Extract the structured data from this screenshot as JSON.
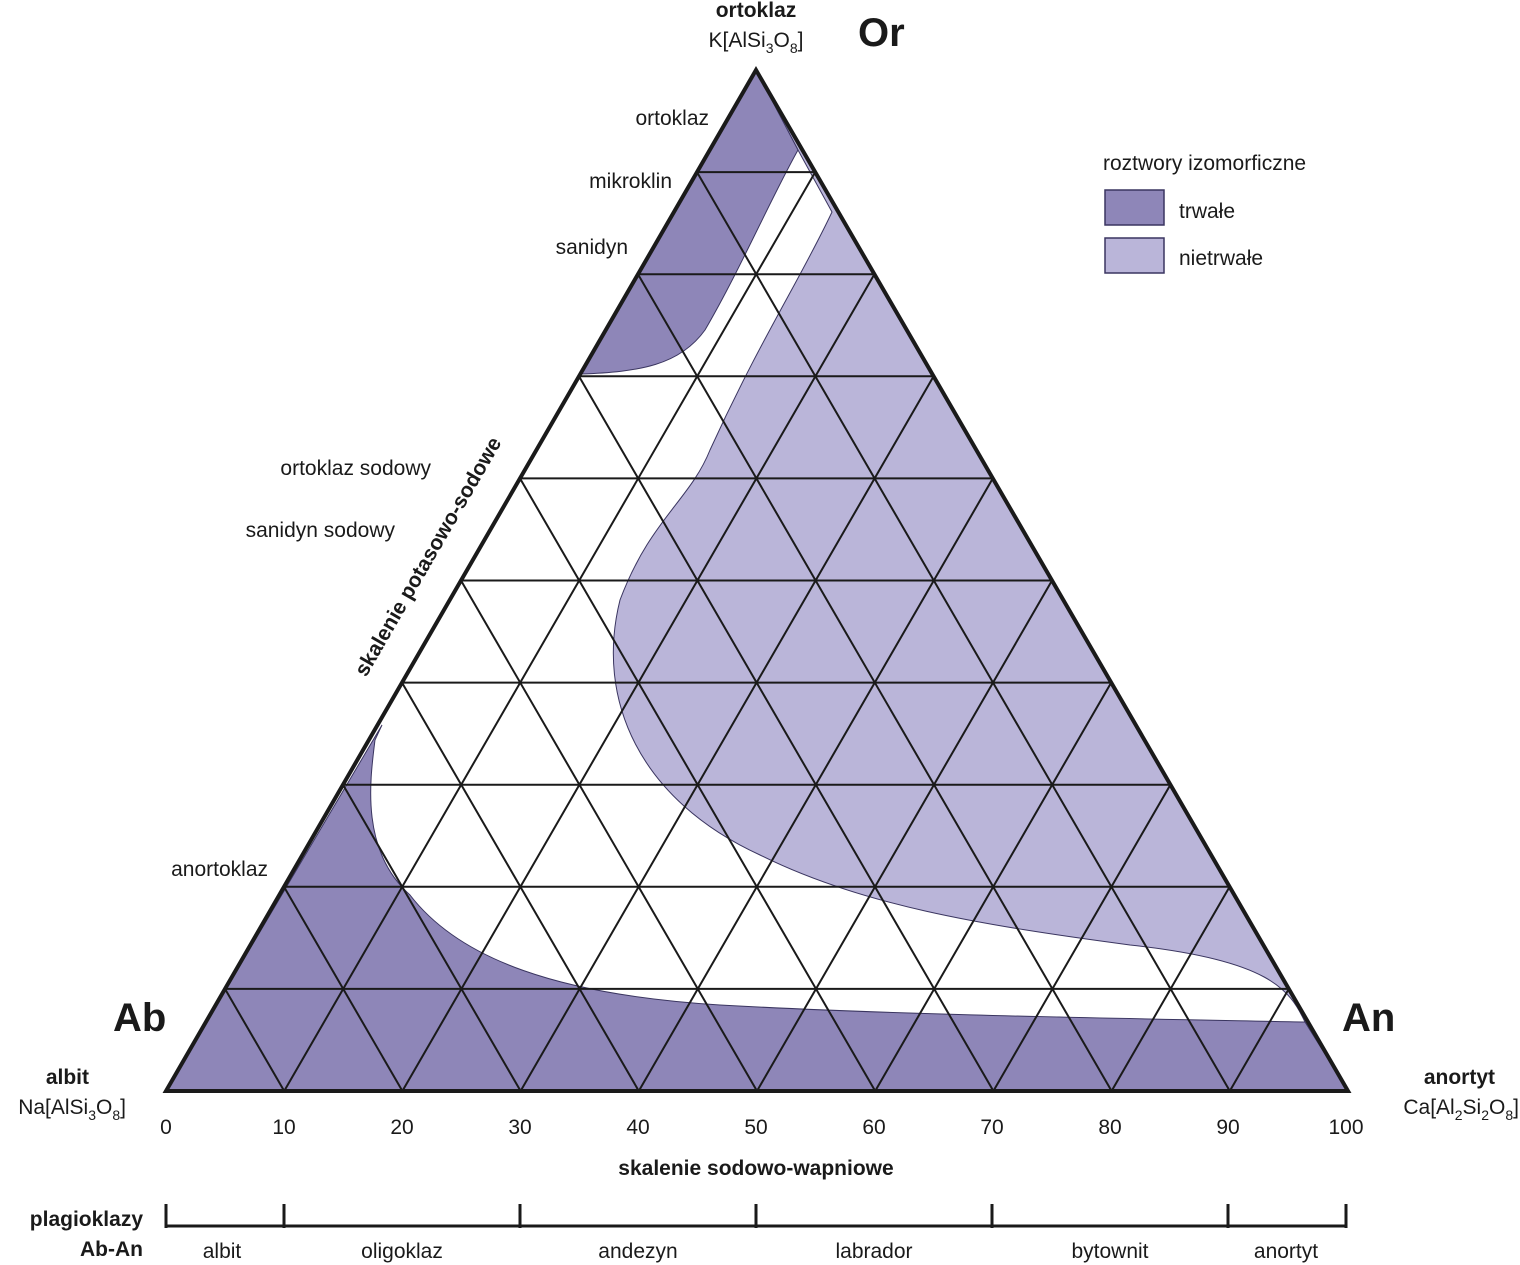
{
  "corners": {
    "top": {
      "abbr": "Or",
      "name": "ortoklaz",
      "formula": "K[AlSi3O8]"
    },
    "left": {
      "abbr": "Ab",
      "name": "albit",
      "formula": "Na[AlSi3O8]"
    },
    "right": {
      "abbr": "An",
      "name": "anortyt",
      "formula": "Ca[Al2Si2O8]"
    }
  },
  "mineral_labels": {
    "ortoklaz": "ortoklaz",
    "mikroklin": "mikroklin",
    "sanidyn": "sanidyn",
    "ortoklaz_sodowy": "ortoklaz sodowy",
    "sanidyn_sodowy": "sanidyn sodowy",
    "anortoklaz": "anortoklaz"
  },
  "side_label": "skalenie potasowo-sodowe",
  "axis": {
    "ticks": [
      "0",
      "10",
      "20",
      "30",
      "40",
      "50",
      "60",
      "70",
      "80",
      "90",
      "100"
    ],
    "title": "skalenie sodowo-wapniowe"
  },
  "plagioclase": {
    "title_line1": "plagioklazy",
    "title_line2": "Ab-An",
    "segments": [
      "albit",
      "oligoklaz",
      "andezyn",
      "labrador",
      "bytownit",
      "anortyt"
    ]
  },
  "legend": {
    "title": "roztwory izomorficzne",
    "items": [
      {
        "label": "trwałe",
        "color": "#8e86b8"
      },
      {
        "label": "nietrwałe",
        "color": "#bab5d9"
      }
    ]
  },
  "colors": {
    "stable": "#8e86b8",
    "unstable": "#bab5d9",
    "line": "#1a1a1a"
  }
}
